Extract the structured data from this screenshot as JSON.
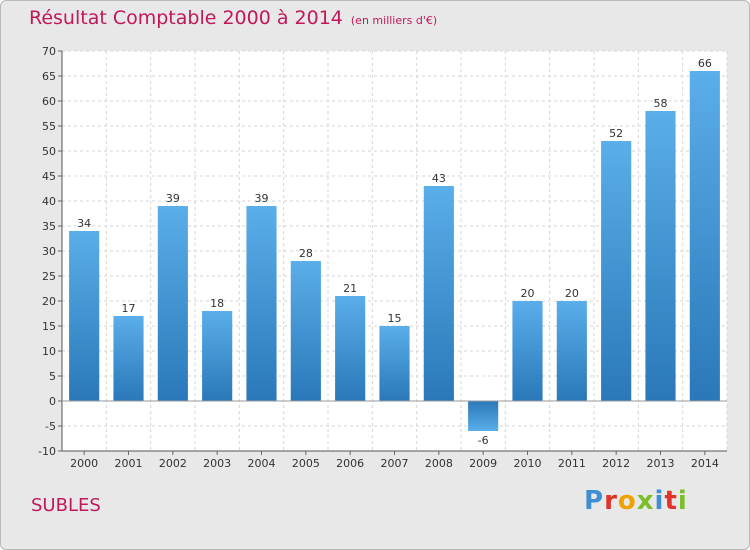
{
  "header": {
    "title": "Résultat Comptable 2000 à 2014",
    "subtitle": "(en milliers d'€)"
  },
  "footer": {
    "commune": "SUBLES",
    "logo_letters": [
      "P",
      "r",
      "o",
      "x",
      "i",
      "t",
      "i"
    ],
    "logo_colors": [
      "#3f8fd2",
      "#e2322a",
      "#f1a100",
      "#7bbd2a",
      "#3f8fd2",
      "#e2322a",
      "#7bbd2a"
    ]
  },
  "chart_data": {
    "type": "bar",
    "title": "Résultat Comptable 2000 à 2014",
    "subtitle": "(en milliers d'€)",
    "categories": [
      "2000",
      "2001",
      "2002",
      "2003",
      "2004",
      "2005",
      "2006",
      "2007",
      "2008",
      "2009",
      "2010",
      "2011",
      "2012",
      "2013",
      "2014"
    ],
    "values": [
      34,
      17,
      39,
      18,
      39,
      28,
      21,
      15,
      43,
      -6,
      20,
      20,
      52,
      58,
      66
    ],
    "ylim": [
      -10,
      70
    ],
    "yticks": [
      -10,
      -5,
      0,
      5,
      10,
      15,
      20,
      25,
      30,
      35,
      40,
      45,
      50,
      55,
      60,
      65,
      70
    ],
    "xlabel": "",
    "ylabel": "",
    "grid": true,
    "bar_color": "#3a8fd0"
  }
}
